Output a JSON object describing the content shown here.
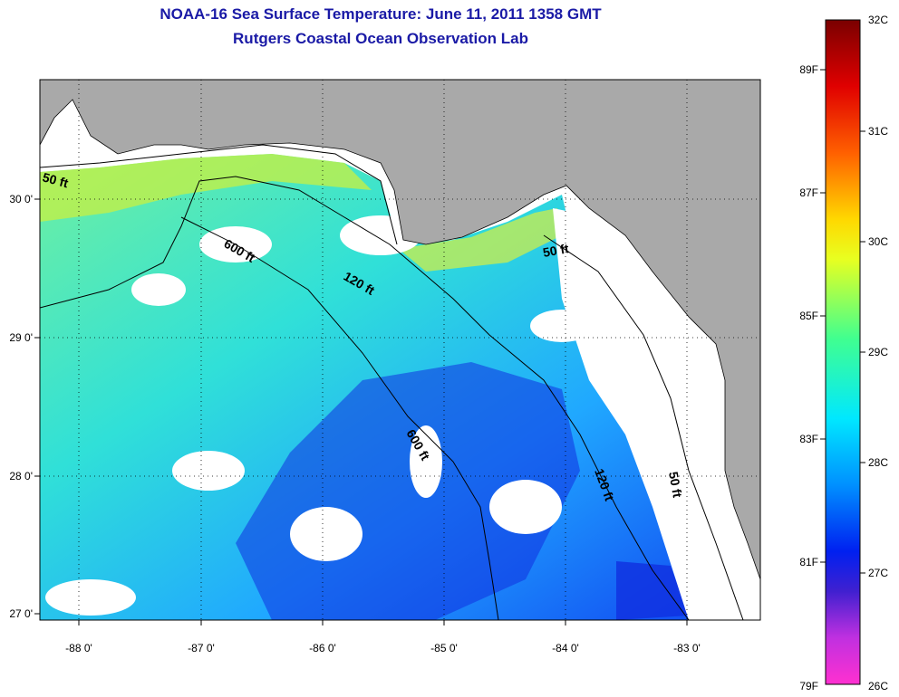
{
  "title_line1": "NOAA-16 Sea Surface Temperature:  June 11, 2011 1358 GMT",
  "title_line2": "Rutgers Coastal Ocean Observation Lab",
  "lat_labels": [
    "30 0'",
    "29 0'",
    "28 0'",
    "27 0'"
  ],
  "lon_labels": [
    "-88 0'",
    "-87 0'",
    "-86 0'",
    "-85 0'",
    "-84 0'",
    "-83 0'"
  ],
  "isobath_labels": [
    "50 ft",
    "600 ft",
    "120 ft",
    "50 ft",
    "600 ft",
    "120 ft",
    "50 ft"
  ],
  "colorbar": {
    "celsius": [
      "32C",
      "31C",
      "30C",
      "29C",
      "28C",
      "27C",
      "26C"
    ],
    "fahrenheit": [
      "89F",
      "87F",
      "85F",
      "83F",
      "81F",
      "79F"
    ]
  },
  "colors": {
    "land": "#a9a9a9",
    "title": "#1a1aa6",
    "sst_low": "#ff30d0",
    "sst_mid": "#00e0ff",
    "sst_high": "#800000"
  }
}
